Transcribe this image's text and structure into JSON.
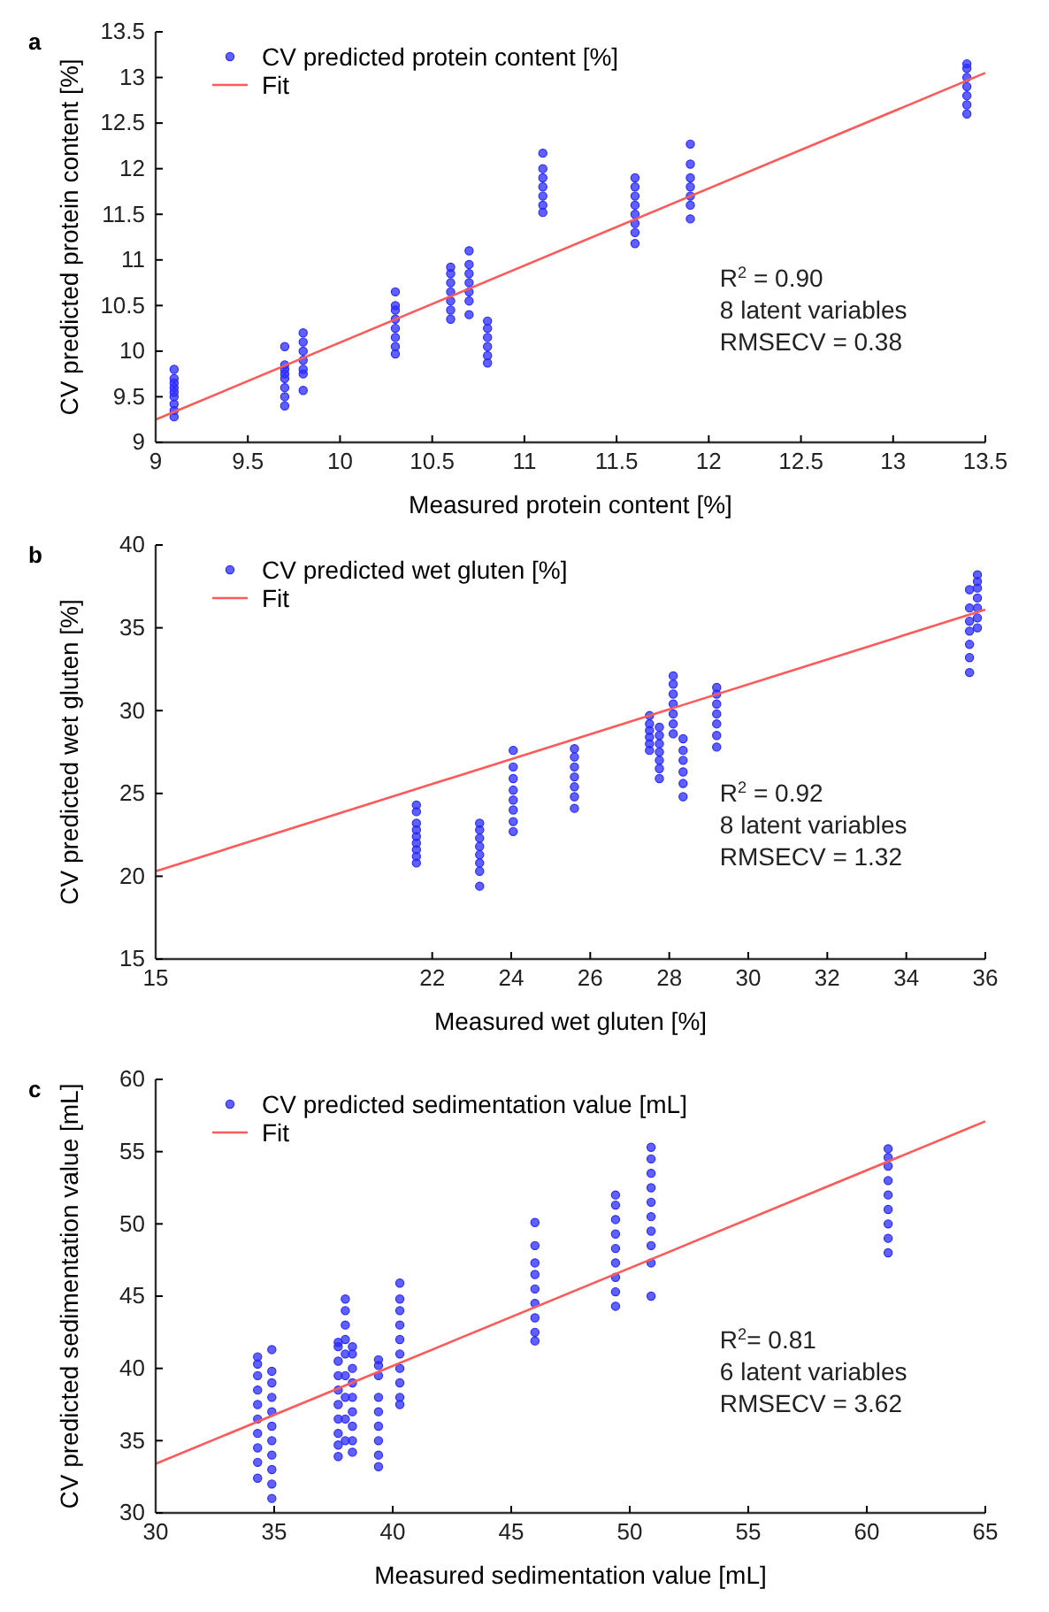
{
  "chart_data": [
    {
      "type": "scatter",
      "title": "a",
      "xlabel": "Measured protein content [%]",
      "ylabel": "CV predicted protein content [%]",
      "xlim": [
        9,
        13.5
      ],
      "ylim": [
        9,
        13.5
      ],
      "xticks": [
        9,
        9.5,
        10,
        10.5,
        11,
        11.5,
        12,
        12.5,
        13,
        13.5
      ],
      "yticks": [
        9,
        9.5,
        10,
        10.5,
        11,
        11.5,
        12,
        12.5,
        13,
        13.5
      ],
      "legend": "top left",
      "annotations": [
        "R$^{2}$ = 0.90",
        "8 latent variables",
        "RMSECV = 0.38"
      ],
      "series": [
        {
          "name": "CV predicted protein content [%]",
          "marker": "circle",
          "color": "#2b2bff",
          "x": [
            9.1,
            9.1,
            9.1,
            9.1,
            9.1,
            9.1,
            9.1,
            9.1,
            9.1,
            9.7,
            9.7,
            9.7,
            9.7,
            9.7,
            9.7,
            9.7,
            9.7,
            9.8,
            9.8,
            9.8,
            9.8,
            9.8,
            9.8,
            9.8,
            10.3,
            10.3,
            10.3,
            10.3,
            10.3,
            10.3,
            10.3,
            10.3,
            10.6,
            10.6,
            10.6,
            10.6,
            10.6,
            10.6,
            10.6,
            10.7,
            10.7,
            10.7,
            10.7,
            10.7,
            10.7,
            10.7,
            10.8,
            10.8,
            10.8,
            10.8,
            10.8,
            10.8,
            11.1,
            11.1,
            11.1,
            11.1,
            11.1,
            11.1,
            11.1,
            11.6,
            11.6,
            11.6,
            11.6,
            11.6,
            11.6,
            11.6,
            11.6,
            11.9,
            11.9,
            11.9,
            11.9,
            11.9,
            11.9,
            11.9,
            13.4,
            13.4,
            13.4,
            13.4,
            13.4,
            13.4,
            13.4
          ],
          "values": [
            9.28,
            9.35,
            9.42,
            9.5,
            9.55,
            9.6,
            9.65,
            9.7,
            9.8,
            9.4,
            9.5,
            9.6,
            9.7,
            9.75,
            9.8,
            9.85,
            10.05,
            9.57,
            9.75,
            9.8,
            9.9,
            10.0,
            10.1,
            10.2,
            9.97,
            10.05,
            10.15,
            10.25,
            10.35,
            10.45,
            10.5,
            10.65,
            10.35,
            10.45,
            10.55,
            10.65,
            10.75,
            10.85,
            10.92,
            10.4,
            10.55,
            10.65,
            10.75,
            10.85,
            10.95,
            11.1,
            9.87,
            9.95,
            10.05,
            10.15,
            10.25,
            10.33,
            11.52,
            11.6,
            11.7,
            11.8,
            11.9,
            12.0,
            12.17,
            11.18,
            11.3,
            11.4,
            11.5,
            11.6,
            11.7,
            11.8,
            11.9,
            11.45,
            11.6,
            11.7,
            11.8,
            11.9,
            12.05,
            12.27,
            12.6,
            12.7,
            12.8,
            12.9,
            13.0,
            13.1,
            13.15
          ]
        },
        {
          "name": "Fit",
          "type": "line",
          "marker": "none",
          "color": "#ff5a5a",
          "x": [
            9,
            13.5
          ],
          "values": [
            9.25,
            13.05
          ]
        }
      ]
    },
    {
      "type": "scatter",
      "title": "b",
      "xlabel": "Measured wet gluten [%]",
      "ylabel": "CV predicted wet gluten [%]",
      "xlim": [
        15,
        36
      ],
      "ylim": [
        15,
        40
      ],
      "xticks": [
        15,
        22,
        24,
        26,
        28,
        30,
        32,
        34,
        36
      ],
      "yticks": [
        15,
        20,
        25,
        30,
        35,
        40
      ],
      "legend": "top left",
      "annotations": [
        "R$^{2}$ = 0.92",
        "8 latent variables",
        "RMSECV = 1.32"
      ],
      "series": [
        {
          "name": "CV predicted wet gluten [%]",
          "marker": "circle",
          "color": "#2b2bff",
          "x": [
            21.6,
            21.6,
            21.6,
            21.6,
            21.6,
            21.6,
            21.6,
            21.6,
            21.6,
            23.2,
            23.2,
            23.2,
            23.2,
            23.2,
            23.2,
            23.2,
            23.2,
            24.05,
            24.05,
            24.05,
            24.05,
            24.05,
            24.05,
            24.05,
            24.05,
            25.6,
            25.6,
            25.6,
            25.6,
            25.6,
            25.6,
            25.6,
            27.5,
            27.5,
            27.5,
            27.5,
            27.5,
            27.5,
            27.75,
            27.75,
            27.75,
            27.75,
            27.75,
            27.75,
            27.75,
            28.1,
            28.1,
            28.1,
            28.1,
            28.1,
            28.1,
            28.1,
            28.35,
            28.35,
            28.35,
            28.35,
            28.35,
            28.35,
            29.2,
            29.2,
            29.2,
            29.2,
            29.2,
            29.2,
            29.2,
            35.6,
            35.6,
            35.6,
            35.6,
            35.6,
            35.6,
            35.6,
            35.8,
            35.8,
            35.8,
            35.8,
            35.8,
            35.8,
            35.8
          ],
          "values": [
            20.8,
            21.2,
            21.6,
            22,
            22.4,
            22.8,
            23.2,
            23.9,
            24.3,
            19.4,
            20.3,
            20.8,
            21.3,
            21.8,
            22.3,
            22.8,
            23.2,
            22.7,
            23.3,
            24,
            24.6,
            25.2,
            25.9,
            26.6,
            27.6,
            24.1,
            24.8,
            25.4,
            26,
            26.6,
            27.2,
            27.7,
            27.6,
            28,
            28.4,
            28.8,
            29.2,
            29.7,
            25.9,
            26.5,
            27,
            27.5,
            28,
            28.5,
            29,
            28.6,
            29.2,
            29.8,
            30.4,
            31,
            31.6,
            32.1,
            24.8,
            25.6,
            26.3,
            27,
            27.6,
            28.3,
            27.8,
            28.5,
            29.2,
            29.8,
            30.4,
            31,
            31.4,
            32.3,
            33.2,
            34,
            34.8,
            35.4,
            36.2,
            37.3,
            35,
            35.6,
            36.2,
            36.8,
            37.4,
            37.8,
            38.2
          ]
        },
        {
          "name": "Fit",
          "type": "line",
          "marker": "none",
          "color": "#ff5a5a",
          "x": [
            15,
            36
          ],
          "values": [
            20.3,
            36.1
          ]
        }
      ]
    },
    {
      "type": "scatter",
      "title": "c",
      "xlabel": "Measured sedimentation value [mL]",
      "ylabel": "CV predicted sedimentation value [mL]",
      "xlim": [
        30,
        65
      ],
      "ylim": [
        30,
        60
      ],
      "xticks": [
        30,
        35,
        40,
        45,
        50,
        55,
        60,
        65
      ],
      "yticks": [
        30,
        35,
        40,
        45,
        50,
        55,
        60
      ],
      "legend": "top left",
      "annotations": [
        "R$^{2}$= 0.81",
        "6 latent variables",
        "RMSECV = 3.62"
      ],
      "series": [
        {
          "name": "CV predicted sedimentation value [mL]",
          "marker": "circle",
          "color": "#2b2bff",
          "x": [
            34.3,
            34.3,
            34.3,
            34.3,
            34.3,
            34.3,
            34.3,
            34.3,
            34.3,
            34.3,
            34.9,
            34.9,
            34.9,
            34.9,
            34.9,
            34.9,
            34.9,
            34.9,
            34.9,
            34.9,
            34.9,
            37.7,
            37.7,
            37.7,
            37.7,
            37.7,
            37.7,
            37.7,
            37.7,
            37.7,
            37.7,
            38,
            38,
            38,
            38,
            38,
            38,
            38,
            38,
            38,
            38.3,
            38.3,
            38.3,
            38.3,
            38.3,
            38.3,
            38.3,
            38.3,
            38.3,
            39.4,
            39.4,
            39.4,
            39.4,
            39.4,
            39.4,
            39.4,
            39.4,
            39.4,
            40.3,
            40.3,
            40.3,
            40.3,
            40.3,
            40.3,
            40.3,
            40.3,
            40.3,
            40.3,
            46,
            46,
            46,
            46,
            46,
            46,
            46,
            46,
            46,
            49.4,
            49.4,
            49.4,
            49.4,
            49.4,
            49.4,
            49.4,
            49.4,
            49.4,
            50.9,
            50.9,
            50.9,
            50.9,
            50.9,
            50.9,
            50.9,
            50.9,
            50.9,
            50.9,
            60.9,
            60.9,
            60.9,
            60.9,
            60.9,
            60.9,
            60.9,
            60.9,
            60.9
          ],
          "values": [
            32.4,
            33.5,
            34.5,
            35.5,
            36.5,
            37.5,
            38.5,
            39.5,
            40.3,
            40.8,
            31,
            32,
            33,
            34,
            35,
            36,
            37,
            38,
            39,
            39.8,
            41.3,
            33.9,
            34.7,
            35.5,
            36.5,
            37.5,
            38.5,
            39.5,
            40.5,
            41.5,
            41.8,
            35,
            36.5,
            38,
            39.5,
            41,
            42,
            43,
            44,
            44.8,
            34.2,
            35,
            36,
            37,
            38,
            39,
            40,
            41,
            41.5,
            33.2,
            34,
            35,
            36,
            37,
            38,
            39.5,
            40.2,
            40.6,
            37.5,
            38,
            39,
            40,
            41,
            42,
            43,
            44,
            44.8,
            45.9,
            41.9,
            42.5,
            43.5,
            44.5,
            45.5,
            46.5,
            47.3,
            48.5,
            50.1,
            44.3,
            45.3,
            46.3,
            47.3,
            48.3,
            49.3,
            50.3,
            51.3,
            52,
            45,
            47.3,
            48.5,
            49.5,
            50.5,
            51.5,
            52.5,
            53.5,
            54.5,
            55.3,
            48,
            49,
            50,
            51,
            52,
            53,
            54,
            54.6,
            55.2
          ]
        },
        {
          "name": "Fit",
          "type": "line",
          "marker": "none",
          "color": "#ff5a5a",
          "x": [
            30,
            65
          ],
          "values": [
            33.4,
            57.1
          ]
        }
      ]
    }
  ]
}
